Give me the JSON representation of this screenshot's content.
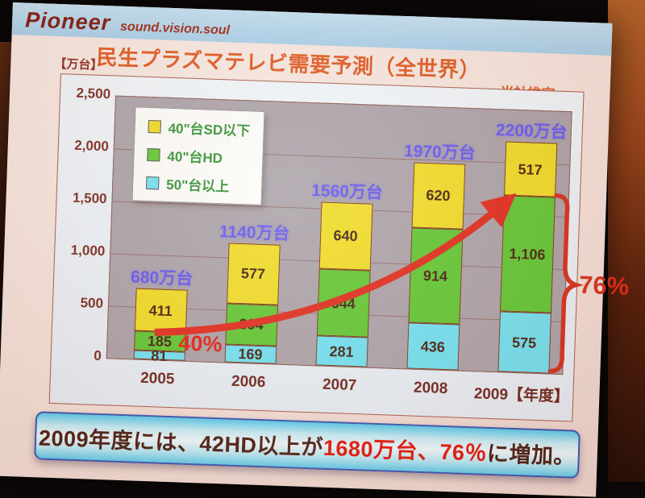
{
  "logo": {
    "brand": "Pioneer",
    "tagline": "sound.vision.soul"
  },
  "title": {
    "main": "民生プラズマテレビ需要予測（全世界）",
    "note": "当社推定"
  },
  "axis_unit": "【万台】",
  "x_axis_suffix": "【年度】",
  "legend": [
    {
      "label": "40\"台SD以下",
      "color": "#f0dc22"
    },
    {
      "label": "40\"台HD",
      "color": "#5ec72f"
    },
    {
      "label": "50\"台以上",
      "color": "#6fe2f2"
    }
  ],
  "chart_data": {
    "type": "bar",
    "subtype": "stacked",
    "categories": [
      "2005",
      "2006",
      "2007",
      "2008",
      "2009"
    ],
    "series": [
      {
        "name": "50\"台以上",
        "color": "#6fe2f2",
        "values": [
          81,
          169,
          281,
          436,
          575
        ],
        "labels": [
          "81",
          "169",
          "281",
          "436",
          "575"
        ]
      },
      {
        "name": "40\"台HD",
        "color": "#5ec72f",
        "values": [
          185,
          394,
          644,
          914,
          1106
        ],
        "labels": [
          "185",
          "394",
          "644",
          "914",
          "1,106"
        ]
      },
      {
        "name": "40\"台SD以下",
        "color": "#f0dc22",
        "values": [
          411,
          577,
          640,
          620,
          517
        ],
        "labels": [
          "411",
          "577",
          "640",
          "620",
          "517"
        ]
      }
    ],
    "totals": [
      "680万台",
      "1140万台",
      "1560万台",
      "1970万台",
      "2200万台"
    ],
    "ylabel": "【万台】",
    "ylim": [
      0,
      2500
    ],
    "yticks": [
      "2,500",
      "2,000",
      "1,500",
      "1,000",
      "500",
      "0"
    ],
    "grid": true,
    "legend_position": "upper-left",
    "annotations": {
      "start_pct": "40%",
      "end_pct": "76%",
      "arrow_color": "#e02818"
    }
  },
  "banner": {
    "prefix": "2009年度には、42HD以上が",
    "highlight": "1680万台、76％",
    "suffix": "に増加。"
  }
}
